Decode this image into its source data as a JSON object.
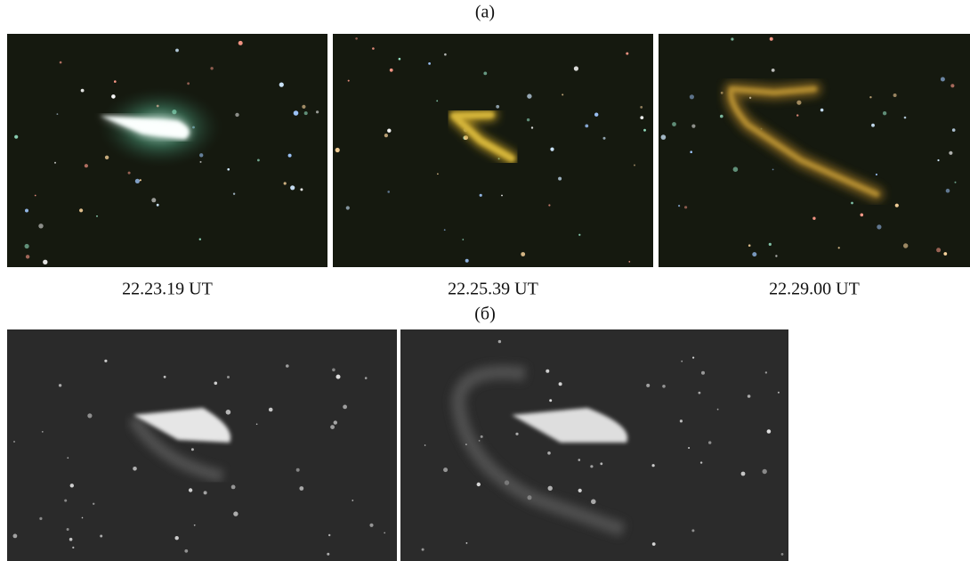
{
  "figure": {
    "panel_a": {
      "label": "(a)",
      "captions": [
        "22.23.19 UT",
        "22.25.39 UT",
        "22.29.00 UT"
      ]
    },
    "panel_b": {
      "label": "(б)"
    }
  }
}
